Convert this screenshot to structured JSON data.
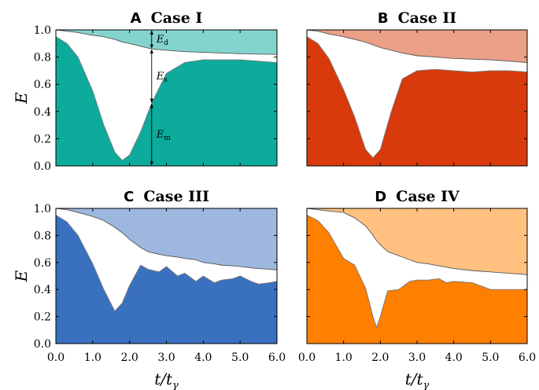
{
  "chart_data": {
    "type": "area",
    "grid": false,
    "xlabel": "t/t",
    "xlabel_sub": "γ",
    "ylabel": "E",
    "xlim": [
      0,
      6
    ],
    "ylim": [
      0,
      1
    ],
    "xticks": [
      0,
      1,
      2,
      3,
      4,
      5,
      6
    ],
    "xtick_labels": [
      "0.0",
      "1.0",
      "2.0",
      "3.0",
      "4.0",
      "5.0",
      "6.0"
    ],
    "yticks": [
      0,
      0.2,
      0.4,
      0.6,
      0.8,
      1.0
    ],
    "ytick_labels": [
      "0.0",
      "0.2",
      "0.4",
      "0.6",
      "0.8",
      "1.0"
    ],
    "annotations": {
      "panel": 0,
      "x": 2.6,
      "labels": [
        {
          "main": "E",
          "sub": "d"
        },
        {
          "main": "E",
          "sub": "s"
        },
        {
          "main": "E",
          "sub": "m"
        }
      ]
    },
    "panels": [
      {
        "letter": "A",
        "case": "Case I",
        "color_mean": "#0cab9c",
        "color_diss": "#82d4cd",
        "x": [
          0,
          0.3,
          0.6,
          1.0,
          1.3,
          1.6,
          1.8,
          2.0,
          2.3,
          2.6,
          3.0,
          3.5,
          4.0,
          4.5,
          5.0,
          5.5,
          6.0
        ],
        "mean": [
          0.95,
          0.9,
          0.8,
          0.55,
          0.3,
          0.1,
          0.04,
          0.08,
          0.25,
          0.46,
          0.68,
          0.76,
          0.78,
          0.78,
          0.78,
          0.77,
          0.76
        ],
        "total": [
          1.0,
          0.99,
          0.98,
          0.96,
          0.95,
          0.93,
          0.91,
          0.9,
          0.88,
          0.86,
          0.85,
          0.84,
          0.835,
          0.83,
          0.825,
          0.822,
          0.82
        ]
      },
      {
        "letter": "B",
        "case": "Case II",
        "color_mean": "#d83a0b",
        "color_diss": "#eba088",
        "x": [
          0,
          0.3,
          0.6,
          1.0,
          1.3,
          1.6,
          1.8,
          2.0,
          2.3,
          2.6,
          3.0,
          3.5,
          4.0,
          4.5,
          5.0,
          5.5,
          6.0
        ],
        "mean": [
          0.95,
          0.9,
          0.79,
          0.56,
          0.36,
          0.12,
          0.06,
          0.12,
          0.4,
          0.64,
          0.7,
          0.71,
          0.7,
          0.69,
          0.7,
          0.7,
          0.69
        ],
        "total": [
          1.0,
          0.99,
          0.97,
          0.95,
          0.93,
          0.91,
          0.89,
          0.87,
          0.85,
          0.83,
          0.81,
          0.8,
          0.79,
          0.785,
          0.78,
          0.77,
          0.76
        ]
      },
      {
        "letter": "C",
        "case": "Case III",
        "color_mean": "#3a71bf",
        "color_diss": "#9db7df",
        "x": [
          0,
          0.3,
          0.6,
          1.0,
          1.3,
          1.6,
          1.8,
          2.0,
          2.3,
          2.5,
          2.8,
          3.0,
          3.3,
          3.5,
          3.8,
          4.0,
          4.3,
          4.5,
          4.8,
          5.0,
          5.3,
          5.5,
          5.8,
          6.0
        ],
        "mean": [
          0.95,
          0.9,
          0.8,
          0.59,
          0.4,
          0.24,
          0.3,
          0.43,
          0.58,
          0.55,
          0.53,
          0.57,
          0.5,
          0.52,
          0.46,
          0.5,
          0.45,
          0.47,
          0.48,
          0.5,
          0.46,
          0.44,
          0.45,
          0.46
        ],
        "total": [
          1.0,
          0.99,
          0.97,
          0.94,
          0.91,
          0.86,
          0.82,
          0.77,
          0.71,
          0.68,
          0.66,
          0.65,
          0.64,
          0.63,
          0.62,
          0.6,
          0.59,
          0.58,
          0.575,
          0.57,
          0.56,
          0.555,
          0.55,
          0.545
        ]
      },
      {
        "letter": "D",
        "case": "Case IV",
        "color_mean": "#ff7f00",
        "color_diss": "#ffc080",
        "x": [
          0,
          0.3,
          0.6,
          1.0,
          1.3,
          1.6,
          1.8,
          1.9,
          2.0,
          2.2,
          2.5,
          2.8,
          3.0,
          3.3,
          3.6,
          3.8,
          4.0,
          4.5,
          5.0,
          5.5,
          6.0
        ],
        "mean": [
          0.95,
          0.91,
          0.82,
          0.63,
          0.58,
          0.41,
          0.2,
          0.12,
          0.2,
          0.39,
          0.4,
          0.46,
          0.47,
          0.47,
          0.48,
          0.45,
          0.46,
          0.45,
          0.4,
          0.4,
          0.4
        ],
        "total": [
          1.0,
          0.99,
          0.98,
          0.97,
          0.93,
          0.87,
          0.8,
          0.76,
          0.73,
          0.68,
          0.65,
          0.62,
          0.6,
          0.59,
          0.575,
          0.565,
          0.555,
          0.54,
          0.53,
          0.52,
          0.51
        ]
      }
    ]
  }
}
